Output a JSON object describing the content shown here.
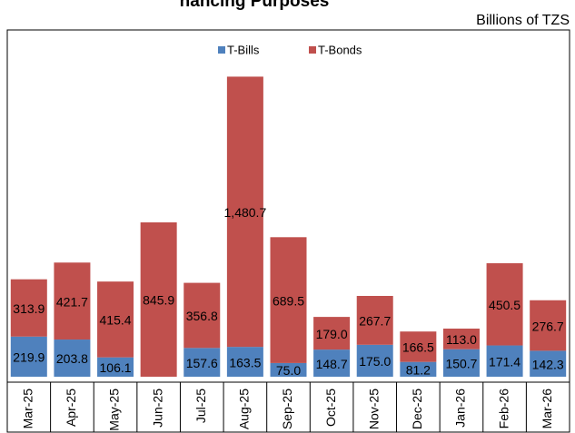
{
  "chart_data": {
    "type": "stacked-bar",
    "title": "nancing Purposes",
    "subtitle": "Billions of TZS",
    "categories": [
      "Mar-25",
      "Apr-25",
      "May-25",
      "Jun-25",
      "Jul-25",
      "Aug-25",
      "Sep-25",
      "Oct-25",
      "Nov-25",
      "Dec-25",
      "Jan-26",
      "Feb-26",
      "Mar-26"
    ],
    "series": [
      {
        "name": "T-Bills",
        "color": "#4f81bd",
        "values": [
          219.9,
          203.8,
          106.1,
          null,
          157.6,
          163.5,
          75,
          148.7,
          175,
          81.2,
          150.7,
          171.4,
          142.3
        ],
        "value_labels": [
          "219.9",
          "203.8",
          "106.1",
          null,
          "157.6",
          "163.5",
          "75.0",
          "148.7",
          "175.0",
          "81.2",
          "150.7",
          "171.4",
          "142.3"
        ]
      },
      {
        "name": "T-Bonds",
        "color": "#c0504d",
        "values": [
          313.9,
          421.7,
          415.4,
          845.9,
          356.8,
          1480.7,
          689.5,
          179,
          267.7,
          166.5,
          113,
          450.5,
          276.7
        ],
        "value_labels": [
          "313.9",
          "421.7",
          "415.4",
          "845.9",
          "356.8",
          "1,480.7",
          "689.5",
          "179.0",
          "267.7",
          "166.5",
          "113.0",
          "450.5",
          "276.7"
        ]
      }
    ],
    "ylim": [
      0,
      1900
    ],
    "legend": "top"
  }
}
